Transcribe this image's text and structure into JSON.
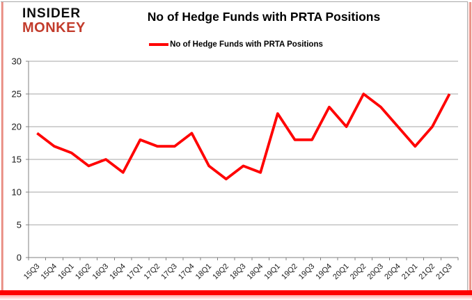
{
  "logo": {
    "line1": "INSIDER",
    "line2": "MONKEY"
  },
  "colors": {
    "series": "#ff0000",
    "logo_accent": "#c23b2b",
    "grid": "#a6a6a6",
    "axis": "#808080",
    "text": "#1a1a1a",
    "bottom_bar": "#fe0100"
  },
  "chart_data": {
    "type": "line",
    "title": "No of Hedge Funds with PRTA Positions",
    "legend": [
      "No of Hedge Funds with PRTA Positions"
    ],
    "legend_position": "top",
    "categories": [
      "15Q3",
      "15Q4",
      "16Q1",
      "16Q2",
      "16Q3",
      "16Q4",
      "17Q1",
      "17Q2",
      "17Q3",
      "17Q4",
      "18Q1",
      "18Q2",
      "18Q3",
      "18Q4",
      "19Q1",
      "19Q2",
      "19Q3",
      "19Q4",
      "20Q1",
      "20Q2",
      "20Q3",
      "20Q4",
      "21Q1",
      "21Q2",
      "21Q3"
    ],
    "values": [
      19,
      17,
      16,
      14,
      15,
      13,
      18,
      17,
      17,
      19,
      14,
      12,
      14,
      13,
      22,
      18,
      18,
      23,
      20,
      25,
      23,
      20,
      17,
      20,
      25
    ],
    "xlabel": "",
    "ylabel": "",
    "ylim": [
      0,
      30
    ],
    "yticks": [
      0,
      5,
      10,
      15,
      20,
      25,
      30
    ],
    "grid": true
  }
}
